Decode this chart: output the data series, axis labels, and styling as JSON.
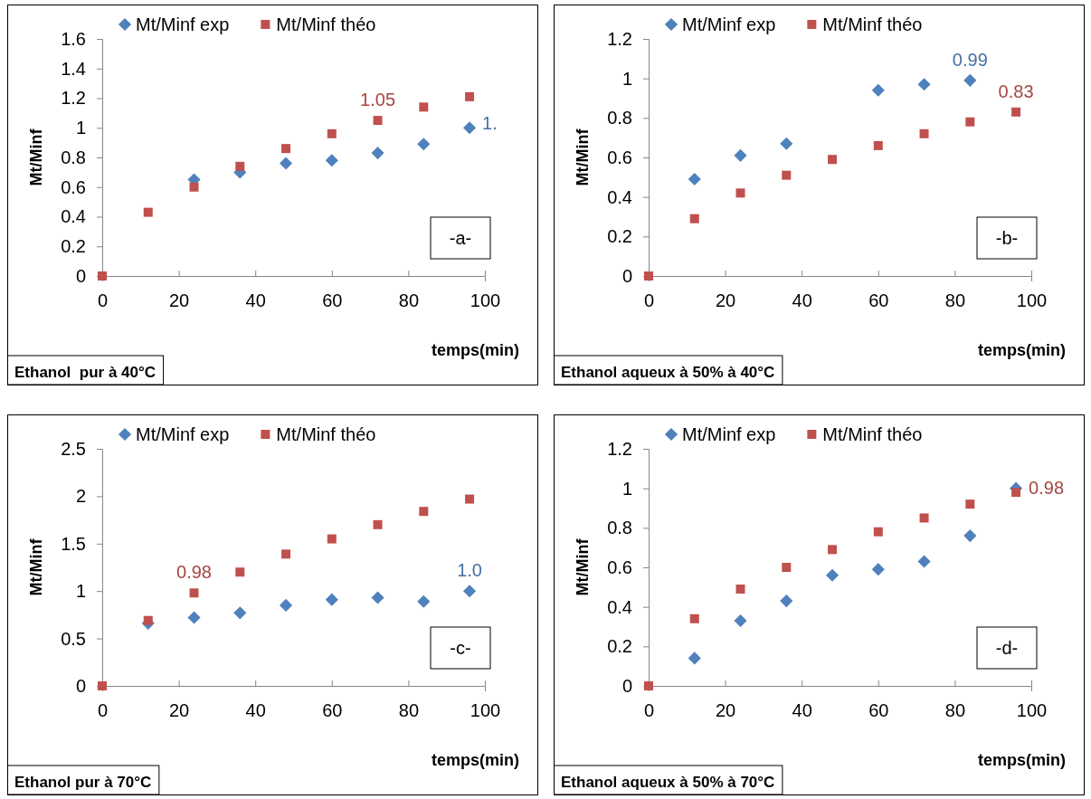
{
  "chart_data": [
    {
      "type": "scatter",
      "title": "Ethanol  pur à 40°C",
      "subtitle": "-a-",
      "xlabel": "temps(min)",
      "ylabel": "Mt/Minf",
      "x": [
        0,
        12,
        24,
        36,
        48,
        60,
        72,
        84,
        96
      ],
      "xlim": [
        0,
        100
      ],
      "xticks": [
        0,
        20,
        40,
        60,
        80,
        100
      ],
      "ylim": [
        0,
        1.6
      ],
      "yticks": [
        0,
        0.2,
        0.4,
        0.6,
        0.8,
        1,
        1.2,
        1.4,
        1.6
      ],
      "legend": "top",
      "grid": false,
      "series": [
        {
          "name": "Mt/Minf exp",
          "color": "#4f81bd",
          "marker": "diamond",
          "values": [
            null,
            null,
            0.65,
            0.7,
            0.76,
            0.78,
            0.83,
            0.89,
            1.0
          ]
        },
        {
          "name": "Mt/Minf théo",
          "color": "#c0504d",
          "marker": "square",
          "values": [
            0,
            0.43,
            0.6,
            0.74,
            0.86,
            0.96,
            1.05,
            1.14,
            1.21
          ]
        }
      ],
      "annotations": [
        {
          "text": "1.05",
          "x": 72,
          "y": 1.05
        },
        {
          "text": "1.",
          "x": 96,
          "y": 1.0
        }
      ]
    },
    {
      "type": "scatter",
      "title": "Ethanol aqueux à 50% à 40°C",
      "subtitle": "-b-",
      "xlabel": "temps(min)",
      "ylabel": "Mt/Minf",
      "x": [
        0,
        12,
        24,
        36,
        48,
        60,
        72,
        84,
        96
      ],
      "xlim": [
        0,
        100
      ],
      "xticks": [
        0,
        20,
        40,
        60,
        80,
        100
      ],
      "ylim": [
        0,
        1.2
      ],
      "yticks": [
        0,
        0.2,
        0.4,
        0.6,
        0.8,
        1,
        1.2
      ],
      "legend": "top",
      "grid": false,
      "series": [
        {
          "name": "Mt/Minf exp",
          "color": "#4f81bd",
          "marker": "diamond",
          "values": [
            null,
            0.49,
            0.61,
            0.67,
            null,
            0.94,
            0.97,
            0.99,
            null
          ]
        },
        {
          "name": "Mt/Minf théo",
          "color": "#c0504d",
          "marker": "square",
          "values": [
            0,
            0.29,
            0.42,
            0.51,
            0.59,
            0.66,
            0.72,
            0.78,
            0.83
          ]
        }
      ],
      "annotations": [
        {
          "text": "0.99",
          "x": 84,
          "y": 0.99
        },
        {
          "text": "0.83",
          "x": 96,
          "y": 0.83
        }
      ]
    },
    {
      "type": "scatter",
      "title": "Ethanol pur à 70°C",
      "subtitle": "-c-",
      "xlabel": "temps(min)",
      "ylabel": "Mt/Minf",
      "x": [
        0,
        12,
        24,
        36,
        48,
        60,
        72,
        84,
        96
      ],
      "xlim": [
        0,
        100
      ],
      "xticks": [
        0,
        20,
        40,
        60,
        80,
        100
      ],
      "ylim": [
        0,
        2.5
      ],
      "yticks": [
        0,
        0.5,
        1,
        1.5,
        2,
        2.5
      ],
      "legend": "top",
      "grid": false,
      "series": [
        {
          "name": "Mt/Minf exp",
          "color": "#4f81bd",
          "marker": "diamond",
          "values": [
            null,
            0.66,
            0.72,
            0.77,
            0.85,
            0.91,
            0.93,
            0.89,
            1.0
          ]
        },
        {
          "name": "Mt/Minf théo",
          "color": "#c0504d",
          "marker": "square",
          "values": [
            0,
            0.69,
            0.98,
            1.2,
            1.39,
            1.55,
            1.7,
            1.84,
            1.97
          ]
        }
      ],
      "annotations": [
        {
          "text": "0.98",
          "x": 24,
          "y": 0.98
        },
        {
          "text": "1.0",
          "x": 96,
          "y": 1.0
        }
      ]
    },
    {
      "type": "scatter",
      "title": "Ethanol aqueux à 50% à 70°C",
      "subtitle": "-d-",
      "xlabel": "temps(min)",
      "ylabel": "Mt/Minf",
      "x": [
        0,
        12,
        24,
        36,
        48,
        60,
        72,
        84,
        96
      ],
      "xlim": [
        0,
        100
      ],
      "xticks": [
        0,
        20,
        40,
        60,
        80,
        100
      ],
      "ylim": [
        0,
        1.2
      ],
      "yticks": [
        0,
        0.2,
        0.4,
        0.6,
        0.8,
        1,
        1.2
      ],
      "legend": "top",
      "grid": false,
      "series": [
        {
          "name": "Mt/Minf exp",
          "color": "#4f81bd",
          "marker": "diamond",
          "values": [
            null,
            0.14,
            0.33,
            0.43,
            0.56,
            0.59,
            0.63,
            0.76,
            1.0
          ]
        },
        {
          "name": "Mt/Minf théo",
          "color": "#c0504d",
          "marker": "square",
          "values": [
            0,
            0.34,
            0.49,
            0.6,
            0.69,
            0.78,
            0.85,
            0.92,
            0.98
          ]
        }
      ],
      "annotations": [
        {
          "text": "0.98",
          "x": 96,
          "y": 0.98
        }
      ]
    }
  ]
}
